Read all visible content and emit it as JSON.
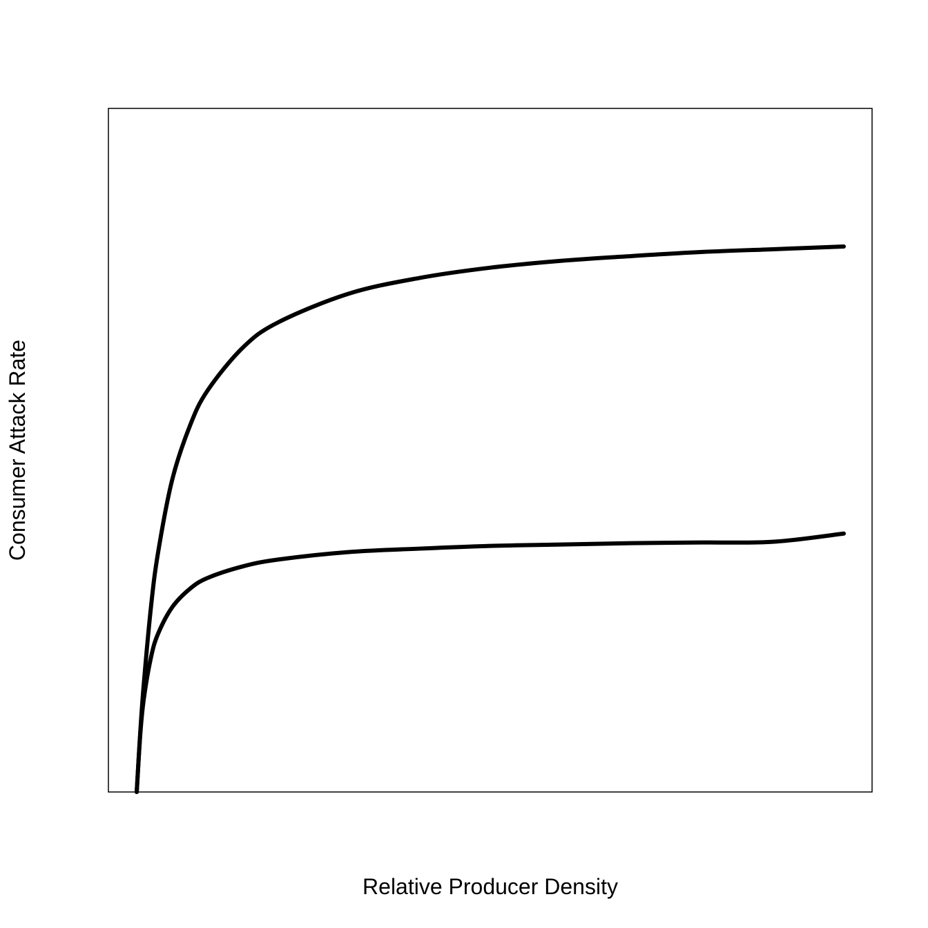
{
  "chart_data": {
    "type": "line",
    "title": "",
    "xlabel": "Relative Producer Density",
    "ylabel": "Consumer Attack Rate",
    "xlim": [
      0,
      1.04
    ],
    "ylim": [
      0,
      1
    ],
    "grid": false,
    "ticks_shown": false,
    "legend": "none",
    "line_color": "#000000",
    "series": [
      {
        "x": [
          0.0,
          0.005,
          0.01,
          0.02,
          0.03,
          0.05,
          0.075,
          0.1,
          0.15,
          0.2,
          0.3,
          0.4,
          0.5,
          0.6,
          0.7,
          0.8,
          0.9,
          1.0
        ],
        "y": [
          0.0,
          0.087,
          0.158,
          0.269,
          0.349,
          0.456,
          0.535,
          0.587,
          0.65,
          0.687,
          0.729,
          0.752,
          0.767,
          0.777,
          0.784,
          0.79,
          0.794,
          0.798
        ]
      },
      {
        "x": [
          0.0,
          0.005,
          0.01,
          0.02,
          0.03,
          0.05,
          0.075,
          0.1,
          0.15,
          0.2,
          0.3,
          0.4,
          0.5,
          0.6,
          0.7,
          0.8,
          0.9,
          1.0
        ],
        "y": [
          0.0,
          0.084,
          0.136,
          0.196,
          0.231,
          0.27,
          0.297,
          0.313,
          0.33,
          0.34,
          0.351,
          0.356,
          0.36,
          0.362,
          0.364,
          0.365,
          0.366,
          0.378
        ]
      }
    ]
  }
}
